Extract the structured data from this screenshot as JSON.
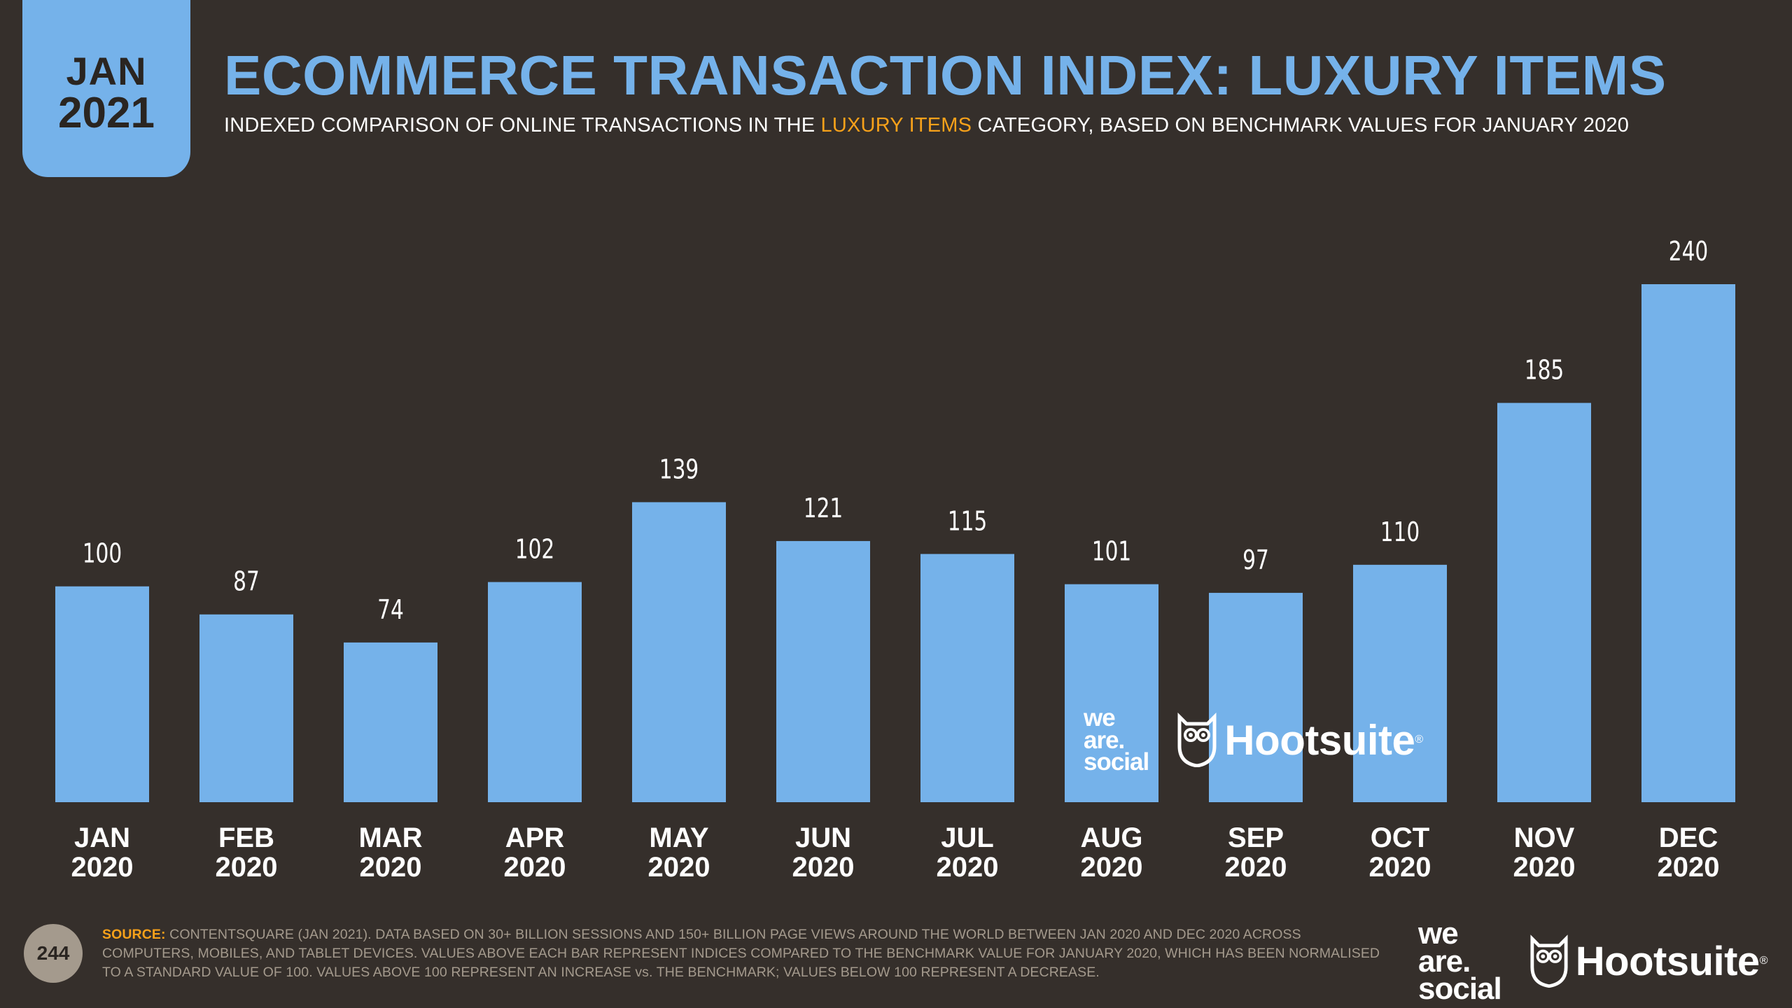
{
  "badge": {
    "month": "JAN",
    "year": "2021"
  },
  "header": {
    "title": "ECOMMERCE TRANSACTION INDEX: LUXURY ITEMS",
    "subtitle_pre": "INDEXED COMPARISON OF ONLINE TRANSACTIONS IN THE ",
    "subtitle_highlight": "LUXURY ITEMS",
    "subtitle_post": " CATEGORY, BASED ON BENCHMARK VALUES FOR JANUARY 2020"
  },
  "chart_data": {
    "type": "bar",
    "title": "ECOMMERCE TRANSACTION INDEX: LUXURY ITEMS",
    "categories": [
      "JAN 2020",
      "FEB 2020",
      "MAR 2020",
      "APR 2020",
      "MAY 2020",
      "JUN 2020",
      "JUL 2020",
      "AUG 2020",
      "SEP 2020",
      "OCT 2020",
      "NOV 2020",
      "DEC 2020"
    ],
    "category_lines": [
      [
        "JAN",
        "2020"
      ],
      [
        "FEB",
        "2020"
      ],
      [
        "MAR",
        "2020"
      ],
      [
        "APR",
        "2020"
      ],
      [
        "MAY",
        "2020"
      ],
      [
        "JUN",
        "2020"
      ],
      [
        "JUL",
        "2020"
      ],
      [
        "AUG",
        "2020"
      ],
      [
        "SEP",
        "2020"
      ],
      [
        "OCT",
        "2020"
      ],
      [
        "NOV",
        "2020"
      ],
      [
        "DEC",
        "2020"
      ]
    ],
    "values": [
      100,
      87,
      74,
      102,
      139,
      121,
      115,
      101,
      97,
      110,
      185,
      240
    ],
    "xlabel": "",
    "ylabel": "",
    "ylim": [
      0,
      240
    ],
    "grid": false,
    "bar_color": "#75b2ea"
  },
  "watermark": {
    "was_lines": [
      "we",
      "are.",
      "social"
    ],
    "hootsuite": "Hootsuite",
    "reg": "®"
  },
  "footer": {
    "page_number": "244",
    "source_label": "SOURCE:",
    "source_text": " CONTENTSQUARE (JAN 2021). DATA BASED ON 30+ BILLION SESSIONS AND 150+ BILLION PAGE VIEWS AROUND THE WORLD BETWEEN JAN 2020 AND DEC 2020 ACROSS COMPUTERS, MOBILES, AND TABLET DEVICES. VALUES ABOVE EACH BAR REPRESENT INDICES COMPARED TO THE BENCHMARK VALUE FOR JANUARY 2020, WHICH HAS BEEN NORMALISED TO A STANDARD VALUE OF 100. VALUES ABOVE 100 REPRESENT AN INCREASE vs. THE BENCHMARK; VALUES BELOW 100 REPRESENT A DECREASE."
  },
  "colors": {
    "background": "#352f2b",
    "accent": "#75b2ea",
    "highlight": "#f7a11a",
    "muted": "#a49a8d"
  }
}
